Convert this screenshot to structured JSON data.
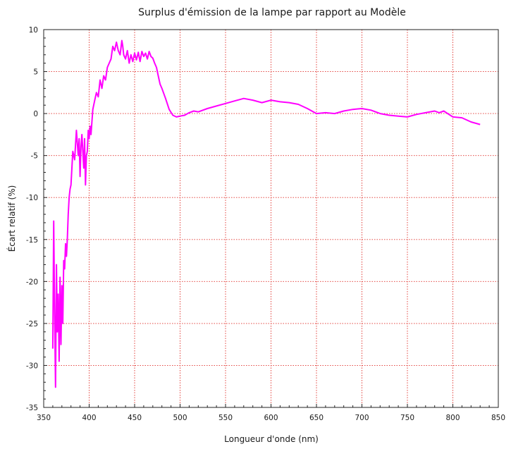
{
  "chart_data": {
    "type": "line",
    "title": "Surplus d'émission de la lampe par rapport au Modèle",
    "xlabel": "Longueur d'onde (nm)",
    "ylabel": "Écart relatif (%)",
    "xlim": [
      350,
      850
    ],
    "ylim": [
      -35,
      10
    ],
    "xticks": [
      "350",
      "400",
      "450",
      "500",
      "550",
      "600",
      "650",
      "700",
      "750",
      "800",
      "850"
    ],
    "yticks": [
      "10",
      "5",
      "0",
      "-5",
      "-10",
      "-15",
      "-20",
      "-25",
      "-30",
      "-35"
    ],
    "grid": true,
    "series_color": "#ff00ff",
    "grid_color": "#e0302b",
    "x": [
      360,
      361,
      362,
      363,
      364,
      365,
      366,
      367,
      368,
      369,
      370,
      371,
      372,
      373,
      374,
      375,
      376,
      377,
      378,
      379,
      380,
      381,
      382,
      384,
      386,
      388,
      389,
      390,
      391,
      392,
      393,
      394,
      395,
      396,
      397,
      398,
      399,
      400,
      401,
      402,
      403,
      404,
      406,
      408,
      410,
      412,
      414,
      416,
      418,
      420,
      422,
      424,
      426,
      428,
      430,
      432,
      434,
      436,
      437,
      438,
      440,
      442,
      444,
      446,
      448,
      450,
      452,
      454,
      456,
      458,
      460,
      462,
      464,
      466,
      468,
      470,
      472,
      474,
      476,
      478,
      480,
      484,
      488,
      492,
      496,
      500,
      505,
      510,
      515,
      520,
      530,
      540,
      550,
      560,
      570,
      580,
      590,
      600,
      610,
      620,
      630,
      640,
      650,
      660,
      670,
      680,
      690,
      700,
      710,
      720,
      730,
      740,
      750,
      760,
      770,
      780,
      785,
      790,
      800,
      810,
      820,
      830
    ],
    "values": [
      -28.0,
      -12.8,
      -24.0,
      -32.6,
      -18.0,
      -26.0,
      -21.5,
      -29.5,
      -19.5,
      -27.5,
      -20.5,
      -25.0,
      -17.5,
      -18.5,
      -15.5,
      -17.0,
      -15.0,
      -12.0,
      -10.0,
      -9.0,
      -8.5,
      -6.5,
      -4.5,
      -5.5,
      -2.0,
      -5.0,
      -3.0,
      -7.5,
      -4.0,
      -2.5,
      -4.5,
      -6.5,
      -3.0,
      -8.5,
      -5.0,
      -4.5,
      -2.0,
      -3.0,
      -1.5,
      -2.5,
      -1.0,
      0.5,
      1.5,
      2.5,
      2.0,
      4.0,
      3.0,
      4.5,
      4.0,
      5.5,
      6.0,
      6.5,
      8.0,
      7.5,
      8.5,
      7.5,
      7.0,
      8.7,
      8.0,
      7.0,
      6.5,
      7.5,
      6.0,
      7.0,
      6.2,
      7.2,
      6.4,
      7.3,
      6.2,
      7.4,
      6.8,
      7.2,
      6.5,
      7.4,
      6.8,
      6.6,
      6.0,
      5.5,
      4.5,
      3.5,
      3.0,
      1.8,
      0.5,
      -0.2,
      -0.4,
      -0.3,
      -0.2,
      0.1,
      0.3,
      0.2,
      0.6,
      0.9,
      1.2,
      1.5,
      1.8,
      1.6,
      1.3,
      1.6,
      1.4,
      1.3,
      1.1,
      0.6,
      0.0,
      0.1,
      0.0,
      0.3,
      0.5,
      0.6,
      0.4,
      0.0,
      -0.2,
      -0.3,
      -0.4,
      -0.1,
      0.1,
      0.3,
      0.1,
      0.3,
      -0.4,
      -0.5,
      -1.0,
      -1.3
    ]
  }
}
